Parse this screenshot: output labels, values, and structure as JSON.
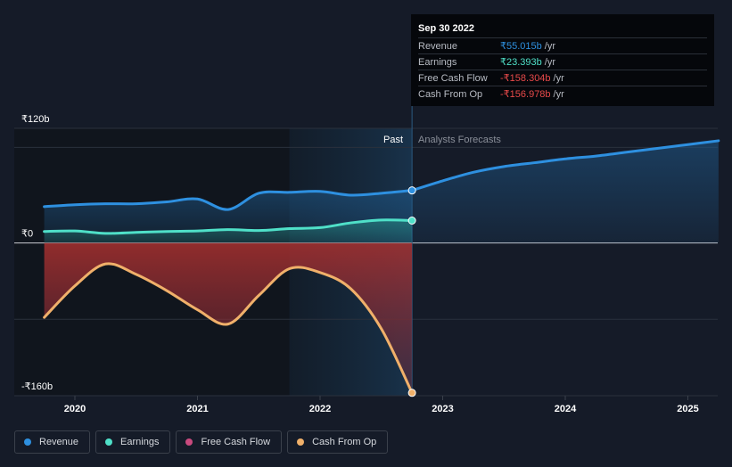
{
  "tooltip": {
    "date": "Sep 30 2022",
    "rows": [
      {
        "label": "Revenue",
        "value": "₹55.015b",
        "unit": "/yr",
        "color": "#2e90e0"
      },
      {
        "label": "Earnings",
        "value": "₹23.393b",
        "unit": "/yr",
        "color": "#4fe0c8"
      },
      {
        "label": "Free Cash Flow",
        "value": "-₹158.304b",
        "unit": "/yr",
        "color": "#e84a4a"
      },
      {
        "label": "Cash From Op",
        "value": "-₹156.978b",
        "unit": "/yr",
        "color": "#e84a4a"
      }
    ]
  },
  "sections": {
    "past": "Past",
    "forecast": "Analysts Forecasts"
  },
  "legend": [
    {
      "label": "Revenue",
      "color": "#2e90e0"
    },
    {
      "label": "Earnings",
      "color": "#4fe0c8"
    },
    {
      "label": "Free Cash Flow",
      "color": "#c94a7e"
    },
    {
      "label": "Cash From Op",
      "color": "#f0b06a"
    }
  ],
  "chart_data": {
    "type": "line",
    "y_unit": "₹b",
    "ylim": [
      -160,
      120
    ],
    "y_tick_labels": [
      {
        "value": 120,
        "label": "₹120b"
      },
      {
        "value": 0,
        "label": "₹0"
      },
      {
        "value": -160,
        "label": "-₹160b"
      }
    ],
    "x_tick_labels": [
      "2020",
      "2021",
      "2022",
      "2023",
      "2024",
      "2025"
    ],
    "x_ticks": [
      2020,
      2021,
      2022,
      2023,
      2024,
      2025
    ],
    "xlim": [
      2019.4,
      2025.25
    ],
    "past_end": 2022.75,
    "shaded_start": 2021.75,
    "series": [
      {
        "name": "Revenue",
        "color": "#2e90e0",
        "x": [
          2019.75,
          2020.0,
          2020.25,
          2020.5,
          2020.75,
          2021.0,
          2021.25,
          2021.5,
          2021.75,
          2022.0,
          2022.25,
          2022.5,
          2022.75
        ],
        "y": [
          38,
          40,
          41,
          41,
          43,
          46,
          35,
          52,
          53,
          54,
          50,
          52,
          55
        ]
      },
      {
        "name": "Revenue forecast",
        "color": "#2e90e0",
        "x": [
          2022.75,
          2023.0,
          2023.25,
          2023.5,
          2023.75,
          2024.0,
          2024.25,
          2024.5,
          2024.75,
          2025.0,
          2025.25
        ],
        "y": [
          55,
          65,
          74,
          80,
          84,
          88,
          91,
          95,
          99,
          103,
          107
        ]
      },
      {
        "name": "Earnings",
        "color": "#4fe0c8",
        "x": [
          2019.75,
          2020.0,
          2020.25,
          2020.5,
          2020.75,
          2021.0,
          2021.25,
          2021.5,
          2021.75,
          2022.0,
          2022.25,
          2022.5,
          2022.75
        ],
        "y": [
          12,
          12.5,
          10,
          11,
          12,
          12.5,
          14,
          13,
          15,
          16,
          21,
          24,
          23.4
        ]
      },
      {
        "name": "Free Cash Flow",
        "color": "#c94a7e",
        "x": [
          2019.75,
          2020.0,
          2020.25,
          2020.5,
          2020.75,
          2021.0,
          2021.25,
          2021.5,
          2021.75,
          2022.0,
          2022.25,
          2022.5,
          2022.75
        ],
        "y": [
          -78,
          -45,
          -22,
          -33,
          -50,
          -70,
          -85,
          -55,
          -27,
          -31,
          -48,
          -90,
          -158.3
        ]
      },
      {
        "name": "Cash From Op",
        "color": "#f0b06a",
        "x": [
          2019.75,
          2020.0,
          2020.25,
          2020.5,
          2020.75,
          2021.0,
          2021.25,
          2021.5,
          2021.75,
          2022.0,
          2022.25,
          2022.5,
          2022.75
        ],
        "y": [
          -78,
          -45,
          -22,
          -33,
          -50,
          -70,
          -85,
          -55,
          -27,
          -31,
          -48,
          -90,
          -157
        ]
      }
    ]
  }
}
